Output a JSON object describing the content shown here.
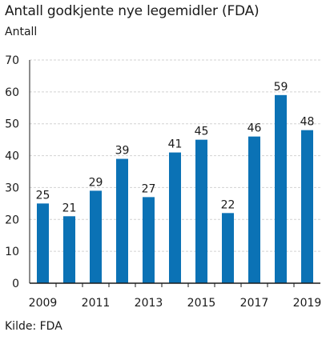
{
  "header": {
    "title": "Antall godkjente nye legemidler (FDA)",
    "unit": "Antall"
  },
  "footer": {
    "source": "Kilde: FDA"
  },
  "colors": {
    "bar": "#0b72b5",
    "grid": "#d2d2d2",
    "axis": "#1a1a1a"
  },
  "chart_data": {
    "type": "bar",
    "title": "Antall godkjente nye legemidler (FDA)",
    "ylabel": "Antall",
    "xlabel": "",
    "categories": [
      "2009",
      "2010",
      "2011",
      "2012",
      "2013",
      "2014",
      "2015",
      "2016",
      "2017",
      "2018",
      "2019"
    ],
    "values": [
      25,
      21,
      29,
      39,
      27,
      41,
      45,
      22,
      46,
      59,
      48
    ],
    "x_tick_labels": [
      "2009",
      "2011",
      "2013",
      "2015",
      "2017",
      "2019"
    ],
    "ylim": [
      0,
      70
    ],
    "y_ticks": [
      0,
      10,
      20,
      30,
      40,
      50,
      60,
      70
    ],
    "grid": true,
    "data_labels": true,
    "legend": "none",
    "source": "Kilde: FDA"
  }
}
